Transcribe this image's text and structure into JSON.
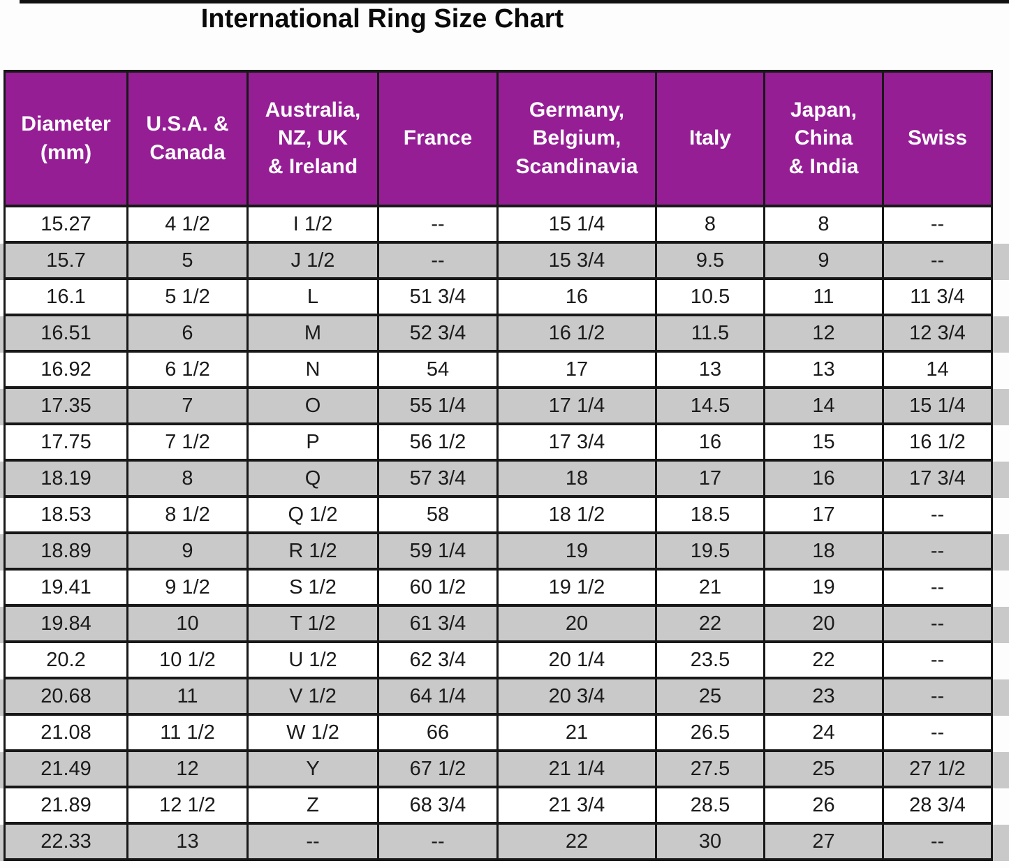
{
  "title": "International Ring Size Chart",
  "colors": {
    "header_bg": "#951e95",
    "header_text": "#ffffff",
    "stripe": "#c9c9c9",
    "border": "#181818",
    "title_text": "#0a0a0a"
  },
  "chart_data": {
    "type": "table",
    "title": "International Ring Size Chart",
    "columns": [
      "Diameter\n(mm)",
      "U.S.A. &\nCanada",
      "Australia,\nNZ, UK\n& Ireland",
      "France",
      "Germany,\nBelgium,\nScandinavia",
      "Italy",
      "Japan,\nChina\n& India",
      "Swiss"
    ],
    "rows": [
      [
        "15.27",
        "4 1/2",
        "I 1/2",
        "--",
        "15 1/4",
        "8",
        "8",
        "--"
      ],
      [
        "15.7",
        "5",
        "J 1/2",
        "--",
        "15 3/4",
        "9.5",
        "9",
        "--"
      ],
      [
        "16.1",
        "5 1/2",
        "L",
        "51 3/4",
        "16",
        "10.5",
        "11",
        "11 3/4"
      ],
      [
        "16.51",
        "6",
        "M",
        "52 3/4",
        "16 1/2",
        "11.5",
        "12",
        "12 3/4"
      ],
      [
        "16.92",
        "6 1/2",
        "N",
        "54",
        "17",
        "13",
        "13",
        "14"
      ],
      [
        "17.35",
        "7",
        "O",
        "55 1/4",
        "17 1/4",
        "14.5",
        "14",
        "15 1/4"
      ],
      [
        "17.75",
        "7 1/2",
        "P",
        "56 1/2",
        "17 3/4",
        "16",
        "15",
        "16 1/2"
      ],
      [
        "18.19",
        "8",
        "Q",
        "57 3/4",
        "18",
        "17",
        "16",
        "17 3/4"
      ],
      [
        "18.53",
        "8 1/2",
        "Q 1/2",
        "58",
        "18 1/2",
        "18.5",
        "17",
        "--"
      ],
      [
        "18.89",
        "9",
        "R 1/2",
        "59 1/4",
        "19",
        "19.5",
        "18",
        "--"
      ],
      [
        "19.41",
        "9 1/2",
        "S 1/2",
        "60 1/2",
        "19 1/2",
        "21",
        "19",
        "--"
      ],
      [
        "19.84",
        "10",
        "T 1/2",
        "61 3/4",
        "20",
        "22",
        "20",
        "--"
      ],
      [
        "20.2",
        "10 1/2",
        "U 1/2",
        "62 3/4",
        "20 1/4",
        "23.5",
        "22",
        "--"
      ],
      [
        "20.68",
        "11",
        "V 1/2",
        "64 1/4",
        "20 3/4",
        "25",
        "23",
        "--"
      ],
      [
        "21.08",
        "11 1/2",
        "W 1/2",
        "66",
        "21",
        "26.5",
        "24",
        "--"
      ],
      [
        "21.49",
        "12",
        "Y",
        "67 1/2",
        "21 1/4",
        "27.5",
        "25",
        "27 1/2"
      ],
      [
        "21.89",
        "12 1/2",
        "Z",
        "68 3/4",
        "21 3/4",
        "28.5",
        "26",
        "28 3/4"
      ],
      [
        "22.33",
        "13",
        "--",
        "--",
        "22",
        "30",
        "27",
        "--"
      ]
    ]
  }
}
